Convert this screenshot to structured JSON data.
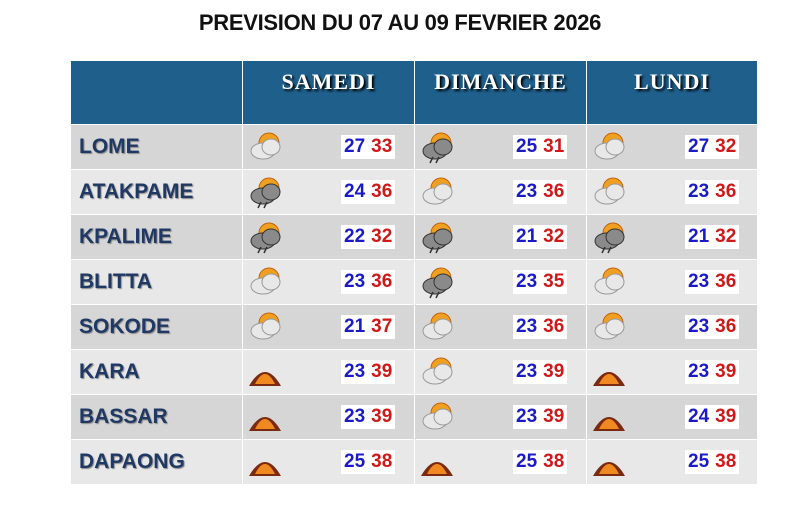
{
  "title": "PREVISION DU 07 AU 09 FEVRIER 2026",
  "table": {
    "days": [
      "SAMEDI",
      "DIMANCHE",
      "LUNDI"
    ],
    "rows": [
      {
        "city": "LOME",
        "forecasts": [
          [
            27,
            33
          ],
          [
            25,
            31
          ],
          [
            27,
            32
          ]
        ]
      },
      {
        "city": "ATAKPAME",
        "forecasts": [
          [
            24,
            36
          ],
          [
            23,
            36
          ],
          [
            23,
            36
          ]
        ]
      },
      {
        "city": "KPALIME",
        "forecasts": [
          [
            22,
            32
          ],
          [
            21,
            32
          ],
          [
            21,
            32
          ]
        ]
      },
      {
        "city": "BLITTA",
        "forecasts": [
          [
            23,
            36
          ],
          [
            23,
            35
          ],
          [
            23,
            36
          ]
        ]
      },
      {
        "city": "SOKODE",
        "forecasts": [
          [
            21,
            37
          ],
          [
            23,
            36
          ],
          [
            23,
            36
          ]
        ]
      },
      {
        "city": "KARA",
        "forecasts": [
          [
            23,
            39
          ],
          [
            23,
            39
          ],
          [
            23,
            39
          ]
        ]
      },
      {
        "city": "BASSAR",
        "forecasts": [
          [
            23,
            39
          ],
          [
            23,
            39
          ],
          [
            24,
            39
          ]
        ]
      },
      {
        "city": "DAPAONG",
        "forecasts": [
          [
            25,
            38
          ],
          [
            25,
            38
          ],
          [
            25,
            38
          ]
        ]
      }
    ]
  }
}
